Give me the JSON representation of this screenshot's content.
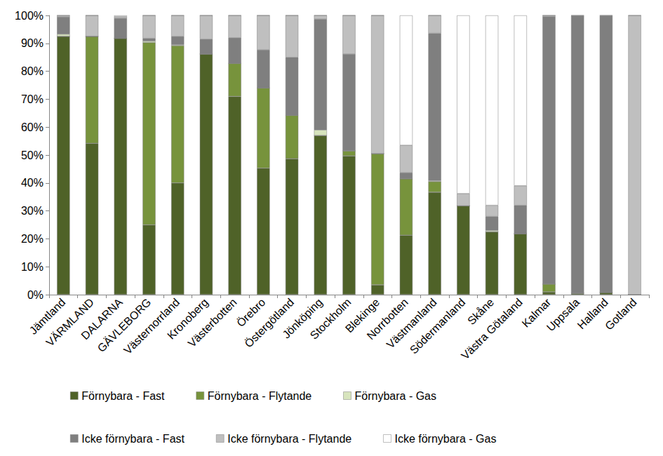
{
  "chart_data": {
    "type": "bar",
    "stacked": true,
    "grid": false,
    "legend": "bottom",
    "categories": [
      "Jämtland",
      "VÄRMLAND",
      "DALARNA",
      "GÄVLEBORG",
      "Västernorrland",
      "Kronoberg",
      "Västerbotten",
      "Örebro",
      "Östergötland",
      "Jönköping",
      "Stockholm",
      "Blekinge",
      "Norrbotten",
      "Västmanland",
      "Södermanland",
      "Skåne",
      "Västra Götaland",
      "Kalmar",
      "Uppsala",
      "Halland",
      "Gotland"
    ],
    "ylim": [
      0,
      100
    ],
    "yticks": [
      {
        "value": 0,
        "label": "0%"
      },
      {
        "value": 10,
        "label": "10%"
      },
      {
        "value": 20,
        "label": "20%"
      },
      {
        "value": 30,
        "label": "30%"
      },
      {
        "value": 40,
        "label": "40%"
      },
      {
        "value": 50,
        "label": "50%"
      },
      {
        "value": 60,
        "label": "60%"
      },
      {
        "value": 70,
        "label": "70%"
      },
      {
        "value": 80,
        "label": "80%"
      },
      {
        "value": 90,
        "label": "90%"
      },
      {
        "value": 100,
        "label": "100%"
      }
    ],
    "series": [
      {
        "name": "Förnybara - Fast",
        "color": "#4f6228",
        "values": [
          92.5,
          54.2,
          91.8,
          25,
          40,
          86.2,
          71,
          45.3,
          48.7,
          57,
          49.7,
          3.5,
          21.3,
          36.7,
          31.8,
          22.5,
          21.8,
          1,
          0.5,
          0.8,
          0
        ]
      },
      {
        "name": "Förnybara - Flytande",
        "color": "#77933c",
        "values": [
          0,
          38.3,
          0,
          65.3,
          49.2,
          0,
          11.8,
          28.7,
          15.5,
          0,
          1.8,
          47,
          20.2,
          3.8,
          0,
          0,
          0,
          2.8,
          0,
          0,
          0
        ]
      },
      {
        "name": "Förnybara - Gas",
        "color": "#d7e4bd",
        "values": [
          0.8,
          0,
          0,
          0.5,
          0.3,
          0,
          0,
          0,
          0,
          2,
          0,
          0,
          0,
          0.3,
          0,
          0.5,
          0,
          0,
          0,
          0,
          0
        ]
      },
      {
        "name": "Icke förnybara - Fast",
        "color": "#7f7f7f",
        "values": [
          6.2,
          0,
          7.2,
          1,
          3,
          5.3,
          9.2,
          13.7,
          20.8,
          39.7,
          34.7,
          0,
          2.2,
          52.8,
          0,
          5,
          10.2,
          95.8,
          99.3,
          99,
          0
        ]
      },
      {
        "name": "Icke förnybara - Flytande",
        "color": "#bfbfbf",
        "values": [
          0.5,
          7.5,
          0.6,
          8.2,
          7.5,
          8.5,
          8,
          12.3,
          15,
          1.3,
          13.8,
          49.5,
          9.8,
          6.4,
          4.4,
          4,
          7,
          0.4,
          0.2,
          0.2,
          100
        ]
      },
      {
        "name": "Icke förnybara - Gas",
        "color": "#ffffff",
        "values": [
          0,
          0,
          0.4,
          0,
          0,
          0,
          0,
          0,
          0,
          0,
          0,
          0,
          46.5,
          0,
          63.8,
          68,
          61,
          0,
          0,
          0,
          0
        ]
      }
    ]
  }
}
